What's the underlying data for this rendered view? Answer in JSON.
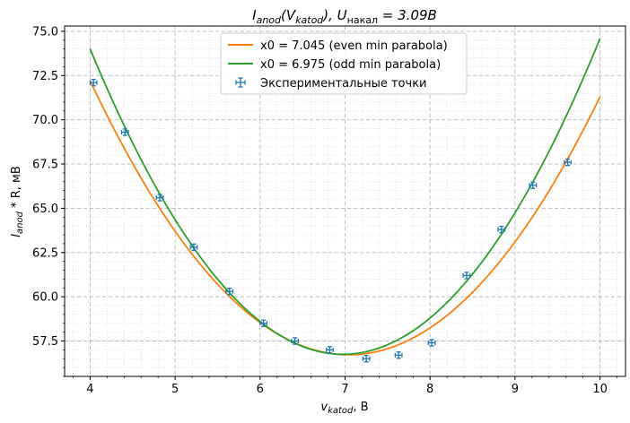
{
  "chart_data": {
    "type": "scatter",
    "title": {
      "main": "I",
      "main_sub": "anod",
      "paren_open": "(V",
      "paren_sub": "katod",
      "paren_close": "), U",
      "u_sub": "накал",
      "equals": " = 3.09B"
    },
    "xlabel": {
      "main": "v",
      "sub": "katod",
      "rest": ", В"
    },
    "ylabel": {
      "main": "I",
      "sub": "anod",
      "rest": " * R, мВ"
    },
    "xlim": [
      3.7,
      10.3
    ],
    "ylim": [
      55.5,
      75.3
    ],
    "x_ticks": [
      4,
      5,
      6,
      7,
      8,
      9,
      10
    ],
    "x_tick_labels": [
      "4",
      "5",
      "6",
      "7",
      "8",
      "9",
      "10"
    ],
    "y_ticks": [
      57.5,
      60.0,
      62.5,
      65.0,
      67.5,
      70.0,
      72.5,
      75.0
    ],
    "y_tick_labels": [
      "57.5",
      "60.0",
      "62.5",
      "65.0",
      "67.5",
      "70.0",
      "72.5",
      "75.0"
    ],
    "grid": "major dashed, minor dotted",
    "legend_position": "top-center",
    "series": [
      {
        "name": "x0 = 7.045 (even min parabola)",
        "kind": "line",
        "color": "#ff7f0e",
        "vertex_x": 7.045,
        "vertex_y": 56.72,
        "coefficient": 1.67,
        "x_range": [
          4.0,
          10.0
        ]
      },
      {
        "name": "x0 = 6.975 (odd min parabola)",
        "kind": "line",
        "color": "#2ca02c",
        "vertex_x": 6.975,
        "vertex_y": 56.75,
        "coefficient": 1.95,
        "x_range": [
          4.0,
          10.0
        ]
      },
      {
        "name": "Экспериментальные точки",
        "kind": "errorbar",
        "color": "#1f77b4",
        "x": [
          4.04,
          4.41,
          4.82,
          5.22,
          5.64,
          6.04,
          6.41,
          6.82,
          7.25,
          7.63,
          8.02,
          8.43,
          8.84,
          9.21,
          9.62
        ],
        "y": [
          72.1,
          69.3,
          65.6,
          62.8,
          60.3,
          58.5,
          57.5,
          57.0,
          56.5,
          56.7,
          57.4,
          61.2,
          63.8,
          66.3,
          67.6
        ],
        "x_err": 0.04,
        "y_err": 0.18
      }
    ]
  }
}
